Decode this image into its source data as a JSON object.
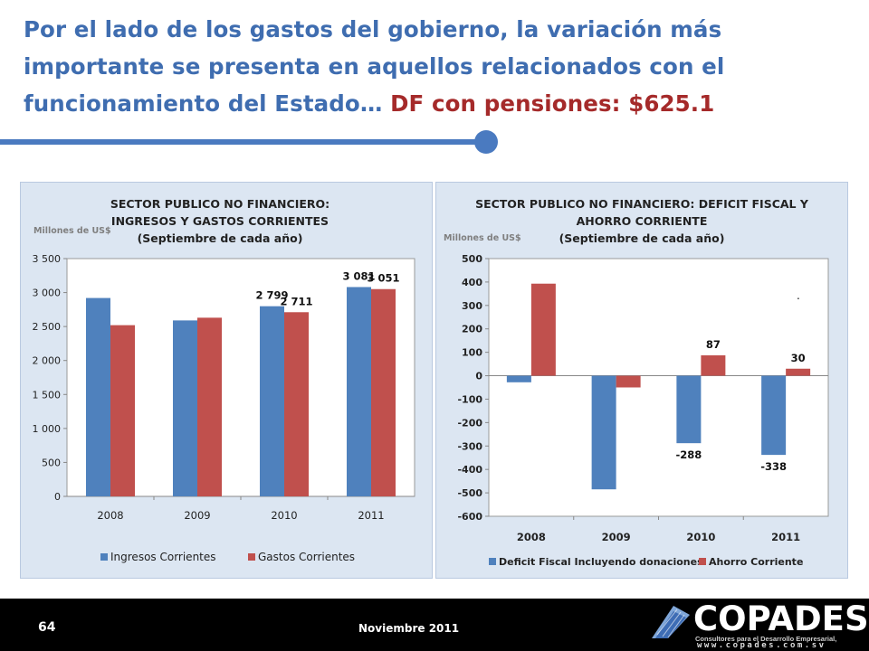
{
  "slide": {
    "title_main": "Por el lado de los gastos del gobierno, la variación más importante se presenta en aquellos relacionados con el funcionamiento del Estado…",
    "title_highlight": "DF con pensiones: $625.1",
    "page_number": "64",
    "date": "Noviembre 2011",
    "logo": {
      "name": "COPADES",
      "tagline": "Consultores para el Desarrollo Empresarial,",
      "url": "www.copades.com.sv"
    },
    "colors": {
      "title": "#3F6DB0",
      "highlight": "#A52A2A",
      "accent": "#4A7AC0"
    }
  },
  "chart_data": [
    {
      "type": "bar",
      "title": [
        "SECTOR PUBLICO NO FINANCIERO:",
        "INGRESOS Y GASTOS CORRIENTES",
        "(Septiembre de cada año)"
      ],
      "ylabel": "Millones de US$",
      "categories": [
        "2008",
        "2009",
        "2010",
        "2011"
      ],
      "series": [
        {
          "name": "Ingresos Corrientes",
          "color": "#4F81BD",
          "values": [
            2920,
            2590,
            2799,
            3081
          ]
        },
        {
          "name": "Gastos Corrientes",
          "color": "#C0504D",
          "values": [
            2520,
            2630,
            2711,
            3051
          ]
        }
      ],
      "data_labels": [
        {
          "series": 0,
          "index": 2,
          "text": "2 799"
        },
        {
          "series": 1,
          "index": 2,
          "text": "2 711"
        },
        {
          "series": 0,
          "index": 3,
          "text": "3 081"
        },
        {
          "series": 1,
          "index": 3,
          "text": "3 051"
        }
      ],
      "ylim": [
        0,
        3500
      ],
      "yticks": [
        0,
        500,
        1000,
        1500,
        2000,
        2500,
        3000,
        3500
      ],
      "ytick_labels": [
        "0",
        "500",
        "1 000",
        "1 500",
        "2 000",
        "2 500",
        "3 000",
        "3 500"
      ],
      "grid": false,
      "legend": "bottom"
    },
    {
      "type": "bar",
      "title": [
        "SECTOR PUBLICO NO FINANCIERO: DEFICIT FISCAL Y",
        "AHORRO CORRIENTE",
        "(Septiembre de cada año)"
      ],
      "ylabel": "Millones de US$",
      "categories": [
        "2008",
        "2009",
        "2010",
        "2011"
      ],
      "series": [
        {
          "name": "Deficit Fiscal Incluyendo donaciones",
          "color": "#4F81BD",
          "values": [
            -28,
            -485,
            -288,
            -338
          ]
        },
        {
          "name": "Ahorro Corriente",
          "color": "#C0504D",
          "values": [
            393,
            -50,
            87,
            30
          ]
        }
      ],
      "data_labels": [
        {
          "series": 1,
          "index": 2,
          "text": "87"
        },
        {
          "series": 1,
          "index": 3,
          "text": "30"
        },
        {
          "series": 0,
          "index": 2,
          "text": "-288"
        },
        {
          "series": 0,
          "index": 3,
          "text": "-338"
        }
      ],
      "annotations": [
        "."
      ],
      "ylim": [
        -600,
        500
      ],
      "yticks": [
        -600,
        -500,
        -400,
        -300,
        -200,
        -100,
        0,
        100,
        200,
        300,
        400,
        500
      ],
      "ytick_labels": [
        "-600",
        "-500",
        "-400",
        "-300",
        "-200",
        "-100",
        "0",
        "100",
        "200",
        "300",
        "400",
        "500"
      ],
      "grid": false,
      "legend": "bottom"
    }
  ]
}
